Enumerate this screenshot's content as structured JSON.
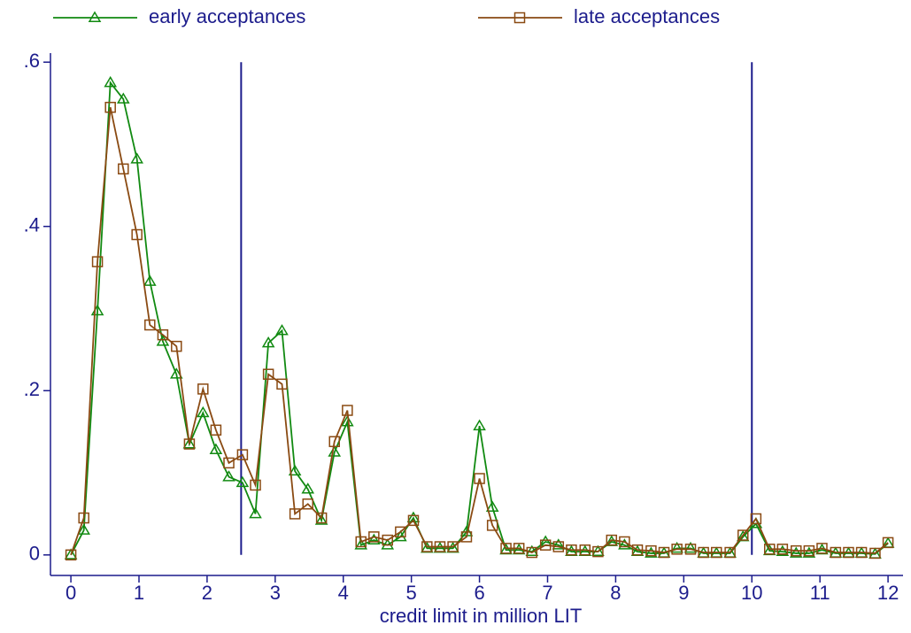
{
  "chart_data": {
    "type": "line",
    "x_label": "credit limit in million LIT",
    "x": [
      0,
      0.19,
      0.39,
      0.58,
      0.77,
      0.97,
      1.16,
      1.35,
      1.55,
      1.74,
      1.94,
      2.13,
      2.32,
      2.52,
      2.71,
      2.9,
      3.1,
      3.29,
      3.48,
      3.68,
      3.87,
      4.06,
      4.26,
      4.45,
      4.65,
      4.84,
      5.03,
      5.23,
      5.42,
      5.61,
      5.81,
      6.0,
      6.19,
      6.39,
      6.58,
      6.77,
      6.97,
      7.16,
      7.35,
      7.55,
      7.74,
      7.94,
      8.13,
      8.32,
      8.52,
      8.71,
      8.9,
      9.1,
      9.29,
      9.48,
      9.68,
      9.87,
      10.06,
      10.26,
      10.45,
      10.65,
      10.84,
      11.03,
      11.23,
      11.42,
      11.61,
      11.81,
      12.0
    ],
    "series": [
      {
        "name": "early acceptances",
        "color": "#118a11",
        "marker": "triangle",
        "values": [
          0,
          0.03,
          0.297,
          0.575,
          0.555,
          0.482,
          0.333,
          0.26,
          0.22,
          0.135,
          0.173,
          0.128,
          0.095,
          0.088,
          0.05,
          0.258,
          0.273,
          0.102,
          0.08,
          0.042,
          0.125,
          0.162,
          0.012,
          0.018,
          0.012,
          0.022,
          0.045,
          0.008,
          0.008,
          0.008,
          0.028,
          0.157,
          0.058,
          0.006,
          0.006,
          0.004,
          0.016,
          0.012,
          0.004,
          0.004,
          0.004,
          0.016,
          0.012,
          0.004,
          0.002,
          0.002,
          0.008,
          0.008,
          0.002,
          0.002,
          0.002,
          0.022,
          0.038,
          0.005,
          0.004,
          0.002,
          0.002,
          0.006,
          0.002,
          0.002,
          0.002,
          0.001,
          0.014
        ]
      },
      {
        "name": "late acceptances",
        "color": "#8a4a12",
        "marker": "square",
        "values": [
          0,
          0.045,
          0.357,
          0.545,
          0.47,
          0.39,
          0.28,
          0.268,
          0.254,
          0.135,
          0.202,
          0.152,
          0.112,
          0.122,
          0.085,
          0.22,
          0.208,
          0.05,
          0.062,
          0.045,
          0.138,
          0.176,
          0.016,
          0.022,
          0.018,
          0.028,
          0.042,
          0.01,
          0.01,
          0.01,
          0.022,
          0.093,
          0.036,
          0.008,
          0.008,
          0.003,
          0.012,
          0.01,
          0.006,
          0.006,
          0.004,
          0.018,
          0.016,
          0.006,
          0.005,
          0.003,
          0.007,
          0.007,
          0.003,
          0.003,
          0.003,
          0.024,
          0.044,
          0.007,
          0.007,
          0.005,
          0.005,
          0.008,
          0.003,
          0.003,
          0.003,
          0.002,
          0.015
        ]
      }
    ],
    "xlim": [
      -0.3,
      12.22
    ],
    "ylim": [
      -0.025,
      0.611
    ],
    "xticks": [
      0,
      1,
      2,
      3,
      4,
      5,
      6,
      7,
      8,
      9,
      10,
      11,
      12
    ],
    "yticks": [
      0,
      {
        "value": 0.2,
        "label": ".2"
      },
      {
        "value": 0.4,
        "label": ".4"
      },
      {
        "value": 0.6,
        "label": ".6"
      }
    ],
    "xlines": [
      2.5,
      10
    ],
    "xline_color": "#1c1c8c",
    "legend": "top"
  }
}
